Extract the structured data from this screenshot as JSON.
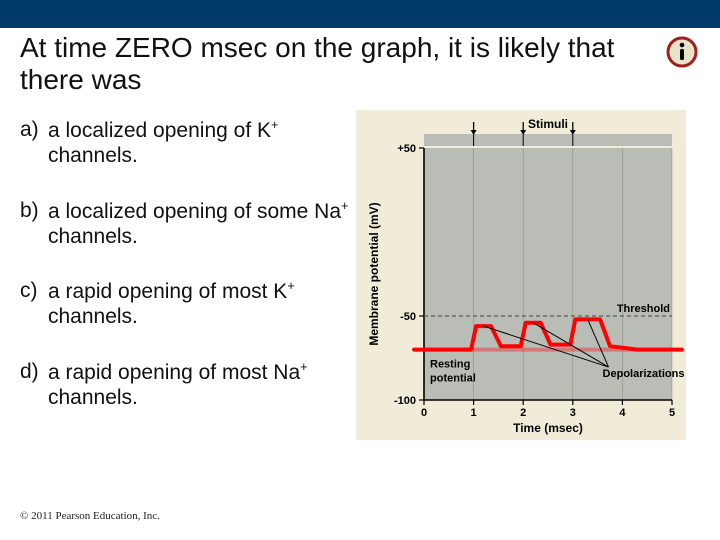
{
  "title": "At time ZERO msec on the graph, it is likely that there was",
  "options": [
    {
      "letter": "a)",
      "html": "a localized opening of K<span class='sup'>+</span> channels."
    },
    {
      "letter": "b)",
      "html": "a localized opening of some Na<span class='sup'>+</span> channels."
    },
    {
      "letter": "c)",
      "html": "a rapid opening of most K<span class='sup'>+</span> channels."
    },
    {
      "letter": "d)",
      "html": "a rapid opening of most Na<span class='sup'>+</span> channels."
    }
  ],
  "copyright": "© 2011 Pearson Education, Inc.",
  "chart": {
    "type": "line",
    "background_color": "#f1ecd8",
    "panel_background_color": "#babdb6",
    "grid_color": "#6e6e6e",
    "axis_color": "#000000",
    "x": {
      "label": "Time (msec)",
      "min": 0,
      "max": 5,
      "ticks": [
        0,
        1,
        2,
        3,
        4,
        5
      ]
    },
    "y": {
      "label": "Membrane potential (mV)",
      "min": -100,
      "max": 50,
      "ticks": [
        -100,
        -50,
        50
      ],
      "plus50_label": "+50"
    },
    "threshold": {
      "y": -50,
      "label": "Threshold",
      "color": "#5a5a5a",
      "dash": "4 3",
      "width": 1.2
    },
    "resting": {
      "y": -70,
      "label": "Resting\npotential",
      "color": "#ff0000",
      "width": 4
    },
    "stimuli": {
      "label": "Stimuli",
      "events_x": [
        1,
        2,
        3
      ],
      "arrow_color": "#000000",
      "band_color": "#babdb6",
      "band_height": 12,
      "label_fontweight": "bold"
    },
    "depolarization_label": "Depolarizations",
    "trace": {
      "color": "#ff0000",
      "width": 4,
      "points_msec_mv": [
        [
          -0.2,
          -70
        ],
        [
          0.95,
          -70
        ],
        [
          1.05,
          -56
        ],
        [
          1.35,
          -56
        ],
        [
          1.55,
          -68
        ],
        [
          1.95,
          -68
        ],
        [
          2.05,
          -54
        ],
        [
          2.35,
          -54
        ],
        [
          2.55,
          -67
        ],
        [
          2.95,
          -67
        ],
        [
          3.05,
          -52
        ],
        [
          3.55,
          -52
        ],
        [
          3.75,
          -68
        ],
        [
          4.3,
          -70
        ],
        [
          5.2,
          -70
        ]
      ]
    },
    "label_fontsize": 12,
    "tick_fontsize": 11,
    "label_fontweight": "bold"
  },
  "icon": {
    "ring_color": "#9e1f1f",
    "fill_color": "#e8e2c8",
    "i_color": "#000000"
  }
}
